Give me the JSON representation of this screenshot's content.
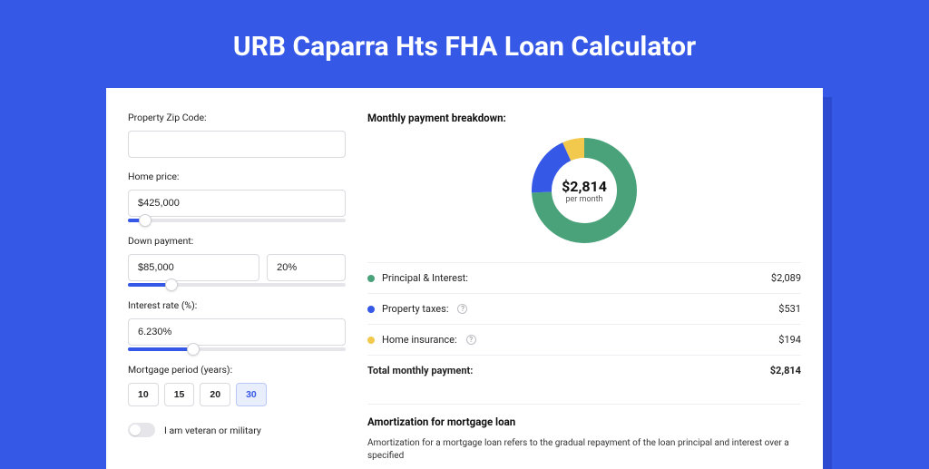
{
  "page": {
    "title": "URB Caparra Hts FHA Loan Calculator",
    "bg_color": "#3558e6",
    "card_shadow_color": "#2c4bd0"
  },
  "form": {
    "zip": {
      "label": "Property Zip Code:",
      "value": ""
    },
    "home_price": {
      "label": "Home price:",
      "value": "$425,000",
      "slider_pct": 8
    },
    "down_payment": {
      "label": "Down payment:",
      "amount": "$85,000",
      "percent": "20%",
      "slider_pct": 20
    },
    "interest_rate": {
      "label": "Interest rate (%):",
      "value": "6.230%",
      "slider_pct": 30
    },
    "period": {
      "label": "Mortgage period (years):",
      "options": [
        "10",
        "15",
        "20",
        "30"
      ],
      "selected_index": 3
    },
    "veteran": {
      "label": "I am veteran or military",
      "on": false
    }
  },
  "breakdown": {
    "title": "Monthly payment breakdown:",
    "center_amount": "$2,814",
    "center_sub": "per month",
    "items": [
      {
        "label": "Principal & Interest:",
        "value": "$2,089",
        "color": "#4aa27a",
        "pct": 74.2,
        "help": false
      },
      {
        "label": "Property taxes:",
        "value": "$531",
        "color": "#3558e6",
        "pct": 18.9,
        "help": true
      },
      {
        "label": "Home insurance:",
        "value": "$194",
        "color": "#f2c94c",
        "pct": 6.9,
        "help": true
      }
    ],
    "total": {
      "label": "Total monthly payment:",
      "value": "$2,814"
    }
  },
  "amortization": {
    "title": "Amortization for mortgage loan",
    "text": "Amortization for a mortgage loan refers to the gradual repayment of the loan principal and interest over a specified"
  }
}
